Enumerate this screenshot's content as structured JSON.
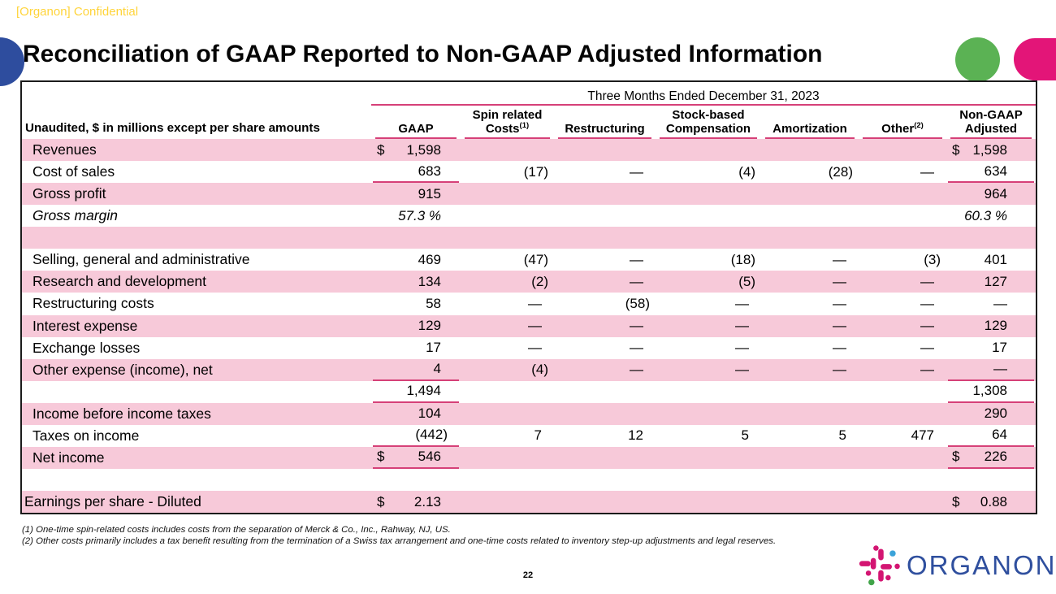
{
  "page": {
    "confidential": "[Organon] Confidential",
    "title": "Reconciliation of GAAP Reported to Non-GAAP Adjusted Information",
    "page_number": "22"
  },
  "table": {
    "span_header": "Three Months Ended December 31, 2023",
    "label_header": "Unaudited, $ in millions except per share amounts",
    "columns": [
      {
        "lines": [
          "GAAP"
        ],
        "sup": ""
      },
      {
        "lines": [
          "Spin related",
          "Costs"
        ],
        "sup": "(1)"
      },
      {
        "lines": [
          "Restructuring"
        ],
        "sup": ""
      },
      {
        "lines": [
          "Stock-based",
          "Compensation"
        ],
        "sup": ""
      },
      {
        "lines": [
          "Amortization"
        ],
        "sup": ""
      },
      {
        "lines": [
          "Other"
        ],
        "sup": "(2)"
      },
      {
        "lines": [
          "Non-GAAP",
          "Adjusted"
        ],
        "sup": ""
      }
    ],
    "rows": [
      {
        "label": "Revenues",
        "values": [
          "1,598",
          "",
          "",
          "",
          "",
          "",
          "1,598"
        ],
        "dollars": [
          0,
          6
        ],
        "underlines": [],
        "bg": "pink",
        "italic": false
      },
      {
        "label": "Cost of sales",
        "values": [
          "683",
          "(17)",
          "—",
          "(4)",
          "(28)",
          "—",
          "634"
        ],
        "dollars": [],
        "underlines": [
          0,
          6
        ],
        "bg": "white",
        "italic": false
      },
      {
        "label": "Gross profit",
        "values": [
          "915",
          "",
          "",
          "",
          "",
          "",
          "964"
        ],
        "dollars": [],
        "underlines": [],
        "bg": "pink",
        "italic": false
      },
      {
        "label": "Gross margin",
        "values": [
          "57.3 %",
          "",
          "",
          "",
          "",
          "",
          "60.3 %"
        ],
        "dollars": [],
        "underlines": [],
        "bg": "white",
        "italic": true
      },
      {
        "label": "",
        "values": [
          "",
          "",
          "",
          "",
          "",
          "",
          ""
        ],
        "dollars": [],
        "underlines": [],
        "bg": "pink",
        "italic": false
      },
      {
        "label": "Selling, general and administrative",
        "values": [
          "469",
          "(47)",
          "—",
          "(18)",
          "—",
          "(3)",
          "401"
        ],
        "dollars": [],
        "underlines": [],
        "bg": "white",
        "italic": false
      },
      {
        "label": "Research and development",
        "values": [
          "134",
          "(2)",
          "—",
          "(5)",
          "—",
          "—",
          "127"
        ],
        "dollars": [],
        "underlines": [],
        "bg": "pink",
        "italic": false
      },
      {
        "label": "Restructuring costs",
        "values": [
          "58",
          "—",
          "(58)",
          "—",
          "—",
          "—",
          "—"
        ],
        "dollars": [],
        "underlines": [],
        "bg": "white",
        "italic": false
      },
      {
        "label": "Interest expense",
        "values": [
          "129",
          "—",
          "—",
          "—",
          "—",
          "—",
          "129"
        ],
        "dollars": [],
        "underlines": [],
        "bg": "pink",
        "italic": false
      },
      {
        "label": "Exchange losses",
        "values": [
          "17",
          "—",
          "—",
          "—",
          "—",
          "—",
          "17"
        ],
        "dollars": [],
        "underlines": [],
        "bg": "white",
        "italic": false
      },
      {
        "label": "Other expense (income), net",
        "values": [
          "4",
          "(4)",
          "—",
          "—",
          "—",
          "—",
          "—"
        ],
        "dollars": [],
        "underlines": [
          0,
          6
        ],
        "bg": "pink",
        "italic": false
      },
      {
        "label": "",
        "values": [
          "1,494",
          "",
          "",
          "",
          "",
          "",
          "1,308"
        ],
        "dollars": [],
        "underlines": [
          0,
          6
        ],
        "bg": "white",
        "italic": false
      },
      {
        "label": "Income before income taxes",
        "values": [
          "104",
          "",
          "",
          "",
          "",
          "",
          "290"
        ],
        "dollars": [],
        "underlines": [],
        "bg": "pink",
        "italic": false
      },
      {
        "label": "Taxes on income",
        "values": [
          "(442)",
          "7",
          "12",
          "5",
          "5",
          "477",
          "64"
        ],
        "dollars": [],
        "underlines": [
          0,
          6
        ],
        "bg": "white",
        "italic": false
      },
      {
        "label": "Net income",
        "values": [
          "546",
          "",
          "",
          "",
          "",
          "",
          "226"
        ],
        "dollars": [
          0,
          6
        ],
        "underlines": [
          0,
          6
        ],
        "bg": "pink",
        "italic": false
      },
      {
        "label": "",
        "values": [
          "",
          "",
          "",
          "",
          "",
          "",
          ""
        ],
        "dollars": [],
        "underlines": [],
        "bg": "white",
        "italic": false
      },
      {
        "label": "Earnings per share - Diluted",
        "values": [
          "2.13",
          "",
          "",
          "",
          "",
          "",
          "0.88"
        ],
        "dollars": [
          0,
          6
        ],
        "underlines": [],
        "bg": "pink",
        "italic": false,
        "tight": true
      }
    ]
  },
  "footnotes": [
    "(1) One-time spin-related costs includes costs from the separation of Merck & Co., Inc., Rahway, NJ, US.",
    "(2) Other costs primarily includes a tax benefit resulting from the termination of a Swiss tax arrangement and one-time costs related to inventory step-up adjustments and legal reserves."
  ],
  "logo": {
    "wordmark": "ORGANON",
    "tm": "™"
  },
  "colors": {
    "yellow": "#ffd43b",
    "blue": "#2e4d9e",
    "green": "#5bb254",
    "pill_pink": "#e31578",
    "magenta": "#d64078",
    "pink_row": "#f7c9d9",
    "logo_blue": "#2f4f9e",
    "logo_magenta": "#d31572",
    "logo_dot_blue": "#3ba3d9",
    "logo_dot_green": "#41a449"
  }
}
